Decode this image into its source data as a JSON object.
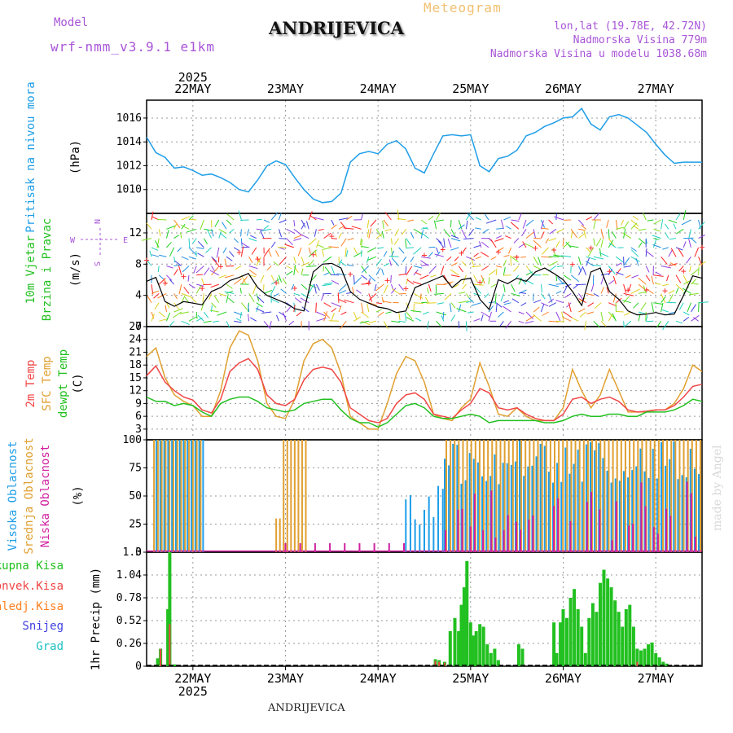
{
  "header": {
    "model_label": "Model",
    "model_name": "wrf-nmm_v3.9.1 e1km",
    "title": "ANDRIJEVICA",
    "subtitle": "Meteogram",
    "coords": "lon,lat (19.78E, 42.72N)",
    "elevation": "Nadmorska Visina 779m",
    "model_elevation": "Nadmorska Visina u modelu 1038.68m",
    "footer": "ANDRIJEVICA",
    "credit": "made by Angel"
  },
  "colors": {
    "pressure": "#1e9ee8",
    "wind_label": "#22c020",
    "t2m": "#f04545",
    "tsfc": "#e0a030",
    "dewpt": "#22c020",
    "cloud_high": "#1e9ee8",
    "cloud_mid": "#e0a030",
    "cloud_low": "#d020a0",
    "precip_total": "#22c020",
    "precip_conv": "#f04545",
    "precip_frozen": "#ff8020",
    "precip_snow": "#4040e0",
    "precip_hail": "#20c0c0",
    "violet": "#a855d8"
  },
  "chart_data": {
    "x_axis": {
      "year": "2025",
      "day_labels": [
        "22MAY",
        "23MAY",
        "24MAY",
        "25MAY",
        "26MAY",
        "27MAY"
      ],
      "range_days": [
        -0.5,
        5.5
      ]
    },
    "panels": [
      {
        "id": "pressure",
        "type": "line",
        "labels": [
          "Pritisak na nivou mora"
        ],
        "unit": "(hPa)",
        "ylim": [
          1008,
          1017.5
        ],
        "yticks": [
          1010,
          1012,
          1014,
          1016
        ],
        "series": [
          {
            "x": [
              -0.5,
              -0.4,
              -0.3,
              -0.2,
              -0.1,
              0,
              0.1,
              0.2,
              0.3,
              0.4,
              0.5,
              0.6,
              0.7,
              0.8,
              0.9,
              1,
              1.1,
              1.2,
              1.3,
              1.4,
              1.5,
              1.6,
              1.7,
              1.8,
              1.9,
              2,
              2.1,
              2.2,
              2.3,
              2.4,
              2.5,
              2.6,
              2.7,
              2.8,
              2.9,
              3,
              3.1,
              3.2,
              3.3,
              3.4,
              3.5,
              3.6,
              3.7,
              3.8,
              3.9,
              4,
              4.1,
              4.2,
              4.3,
              4.4,
              4.5,
              4.6,
              4.7,
              4.8,
              4.9,
              5,
              5.1,
              5.2,
              5.3,
              5.4,
              5.5
            ],
            "y": [
              1014.4,
              1013.1,
              1012.7,
              1011.8,
              1011.9,
              1011.6,
              1011.2,
              1011.3,
              1011.0,
              1010.6,
              1010.0,
              1009.8,
              1010.8,
              1012.0,
              1012.4,
              1012.1,
              1011.0,
              1010.0,
              1009.2,
              1008.9,
              1009.0,
              1009.7,
              1012.3,
              1013.0,
              1013.2,
              1013.0,
              1013.8,
              1014.1,
              1013.4,
              1011.8,
              1011.4,
              1013.0,
              1014.5,
              1014.6,
              1014.5,
              1014.6,
              1012.0,
              1011.5,
              1012.6,
              1012.8,
              1013.3,
              1014.5,
              1014.8,
              1015.3,
              1015.6,
              1016.0,
              1016.1,
              1016.8,
              1015.5,
              1015.0,
              1016.1,
              1016.3,
              1016.0,
              1015.4,
              1014.8,
              1013.8,
              1012.9,
              1012.2,
              1012.3,
              1012.3,
              1012.3
            ]
          }
        ]
      },
      {
        "id": "wind",
        "type": "line",
        "labels": [
          "10m Vjetar",
          "Brzina i Pravac"
        ],
        "unit": "(m/s)",
        "compass": {
          "n": "N",
          "s": "S",
          "w": "W",
          "e": "E"
        },
        "ylim": [
          0,
          14.5
        ],
        "yticks": [
          0,
          4,
          8,
          12
        ],
        "series": [
          {
            "name": "speed",
            "x": [
              -0.5,
              -0.4,
              -0.3,
              -0.2,
              -0.1,
              0,
              0.1,
              0.2,
              0.3,
              0.4,
              0.5,
              0.6,
              0.7,
              0.8,
              0.9,
              1,
              1.1,
              1.2,
              1.3,
              1.4,
              1.5,
              1.6,
              1.7,
              1.8,
              1.9,
              2,
              2.1,
              2.2,
              2.3,
              2.4,
              2.5,
              2.6,
              2.7,
              2.8,
              2.9,
              3,
              3.1,
              3.2,
              3.3,
              3.4,
              3.5,
              3.6,
              3.7,
              3.8,
              3.9,
              4,
              4.1,
              4.2,
              4.3,
              4.4,
              4.5,
              4.6,
              4.7,
              4.8,
              4.9,
              5,
              5.1,
              5.2,
              5.3,
              5.4,
              5.5
            ],
            "y": [
              5.8,
              6.3,
              3.2,
              2.6,
              3.2,
              3.0,
              2.8,
              4.5,
              5.0,
              5.9,
              6.3,
              6.8,
              5.0,
              4.0,
              3.5,
              3.0,
              2.3,
              2.0,
              7.0,
              8.0,
              8.1,
              7.5,
              4.5,
              3.5,
              3.0,
              2.5,
              2.3,
              1.8,
              2.0,
              5.0,
              5.5,
              6.0,
              6.5,
              5.0,
              6.0,
              6.2,
              3.5,
              2.2,
              6.0,
              5.5,
              6.2,
              5.8,
              7.0,
              7.5,
              6.8,
              6.0,
              4.5,
              2.7,
              7.0,
              7.5,
              4.5,
              3.5,
              2.0,
              1.5,
              1.6,
              1.8,
              1.5,
              1.6,
              4.0,
              6.5,
              6.2
            ]
          }
        ]
      },
      {
        "id": "temperature",
        "type": "line",
        "labels": [
          "2m Temp",
          "SFC Temp",
          "dewpt Temp"
        ],
        "unit": "(C)",
        "ylim": [
          0.5,
          27
        ],
        "yticks": [
          3,
          6,
          9,
          12,
          15,
          18,
          21,
          24,
          27
        ],
        "series": [
          {
            "name": "2m Temp",
            "x": [
              -0.5,
              -0.4,
              -0.3,
              -0.2,
              -0.1,
              0,
              0.1,
              0.2,
              0.3,
              0.4,
              0.5,
              0.6,
              0.7,
              0.8,
              0.9,
              1,
              1.1,
              1.2,
              1.3,
              1.4,
              1.5,
              1.6,
              1.7,
              1.8,
              1.9,
              2,
              2.1,
              2.2,
              2.3,
              2.4,
              2.5,
              2.6,
              2.7,
              2.8,
              2.9,
              3,
              3.1,
              3.2,
              3.3,
              3.4,
              3.5,
              3.6,
              3.7,
              3.8,
              3.9,
              4,
              4.1,
              4.2,
              4.3,
              4.4,
              4.5,
              4.6,
              4.7,
              4.8,
              4.9,
              5,
              5.1,
              5.2,
              5.3,
              5.4,
              5.5
            ],
            "y": [
              15.5,
              17.8,
              14.0,
              12.0,
              10.5,
              9.8,
              7.5,
              6.8,
              10.0,
              16.5,
              18.5,
              19.5,
              17.0,
              11.0,
              9.0,
              8.5,
              10.0,
              14.5,
              17.0,
              17.5,
              17.0,
              14.0,
              8.0,
              6.5,
              5.0,
              4.5,
              5.5,
              9.0,
              11.0,
              11.5,
              10.0,
              6.5,
              6.0,
              5.5,
              7.5,
              9.0,
              12.5,
              11.5,
              8.0,
              7.5,
              8.0,
              6.5,
              5.5,
              5.0,
              5.0,
              6.5,
              10.0,
              10.5,
              9.0,
              10.0,
              10.5,
              9.5,
              7.5,
              7.0,
              7.2,
              7.5,
              7.5,
              8.5,
              10.5,
              13.0,
              13.5
            ]
          },
          {
            "name": "SFC Temp",
            "x": [
              -0.5,
              -0.4,
              -0.3,
              -0.2,
              -0.1,
              0,
              0.1,
              0.2,
              0.3,
              0.4,
              0.5,
              0.6,
              0.7,
              0.8,
              0.9,
              1,
              1.1,
              1.2,
              1.3,
              1.4,
              1.5,
              1.6,
              1.7,
              1.8,
              1.9,
              2,
              2.1,
              2.2,
              2.3,
              2.4,
              2.5,
              2.6,
              2.7,
              2.8,
              2.9,
              3,
              3.1,
              3.2,
              3.3,
              3.4,
              3.5,
              3.6,
              3.7,
              3.8,
              3.9,
              4,
              4.1,
              4.2,
              4.3,
              4.4,
              4.5,
              4.6,
              4.7,
              4.8,
              4.9,
              5,
              5.1,
              5.2,
              5.3,
              5.4,
              5.5
            ],
            "y": [
              20.0,
              22.0,
              15.0,
              11.0,
              9.5,
              8.5,
              6.0,
              6.0,
              12.0,
              22.0,
              26.0,
              25.0,
              19.0,
              9.0,
              6.0,
              5.5,
              10.0,
              19.0,
              23.0,
              24.0,
              22.0,
              16.0,
              6.0,
              4.5,
              3.0,
              3.0,
              9.0,
              16.0,
              20.0,
              19.0,
              14.0,
              6.5,
              5.5,
              5.0,
              8.0,
              10.0,
              18.5,
              13.0,
              6.5,
              6.0,
              8.0,
              6.0,
              5.0,
              5.0,
              5.0,
              8.0,
              17.0,
              12.0,
              8.0,
              11.0,
              17.0,
              12.0,
              7.0,
              7.0,
              7.0,
              7.5,
              7.5,
              9.0,
              12.5,
              18.0,
              16.5
            ]
          },
          {
            "name": "dewpt Temp",
            "x": [
              -0.5,
              -0.4,
              -0.3,
              -0.2,
              -0.1,
              0,
              0.1,
              0.2,
              0.3,
              0.4,
              0.5,
              0.6,
              0.7,
              0.8,
              0.9,
              1,
              1.1,
              1.2,
              1.3,
              1.4,
              1.5,
              1.6,
              1.7,
              1.8,
              1.9,
              2,
              2.1,
              2.2,
              2.3,
              2.4,
              2.5,
              2.6,
              2.7,
              2.8,
              2.9,
              3,
              3.1,
              3.2,
              3.3,
              3.4,
              3.5,
              3.6,
              3.7,
              3.8,
              3.9,
              4,
              4.1,
              4.2,
              4.3,
              4.4,
              4.5,
              4.6,
              4.7,
              4.8,
              4.9,
              5,
              5.1,
              5.2,
              5.3,
              5.4,
              5.5
            ],
            "y": [
              10.5,
              9.5,
              9.5,
              8.5,
              9.0,
              8.5,
              7.0,
              6.0,
              9.0,
              10.0,
              10.5,
              10.5,
              9.5,
              8.0,
              7.5,
              7.0,
              7.5,
              9.0,
              9.5,
              10.0,
              10.0,
              7.5,
              5.5,
              4.5,
              4.5,
              3.5,
              4.5,
              6.5,
              8.5,
              9.0,
              8.0,
              6.0,
              5.5,
              5.5,
              6.0,
              6.5,
              6.0,
              4.5,
              5.0,
              5.0,
              5.0,
              5.0,
              5.0,
              4.5,
              4.5,
              5.0,
              6.0,
              6.5,
              6.0,
              6.0,
              6.5,
              6.5,
              6.0,
              6.0,
              7.0,
              7.0,
              7.0,
              7.5,
              8.5,
              10.0,
              9.5
            ]
          }
        ]
      },
      {
        "id": "clouds",
        "type": "bar",
        "labels": [
          "Visoka Oblacnost",
          "Srednja Oblacnost",
          "Niska Oblacnost"
        ],
        "unit": "(%)",
        "ylim": [
          0,
          100
        ],
        "yticks": [
          0,
          25,
          50,
          75,
          100
        ]
      },
      {
        "id": "precip",
        "type": "bar",
        "labels": [
          "Ukupna Kisa",
          "Konvek.Kisa",
          "Zaledj.Kisa",
          "Snijeg",
          "Grad"
        ],
        "unit": "1hr Precip (mm)",
        "ylim": [
          0,
          1.3
        ],
        "yticks": [
          0,
          0.26,
          0.52,
          0.78,
          1.04,
          1.3
        ]
      }
    ]
  }
}
